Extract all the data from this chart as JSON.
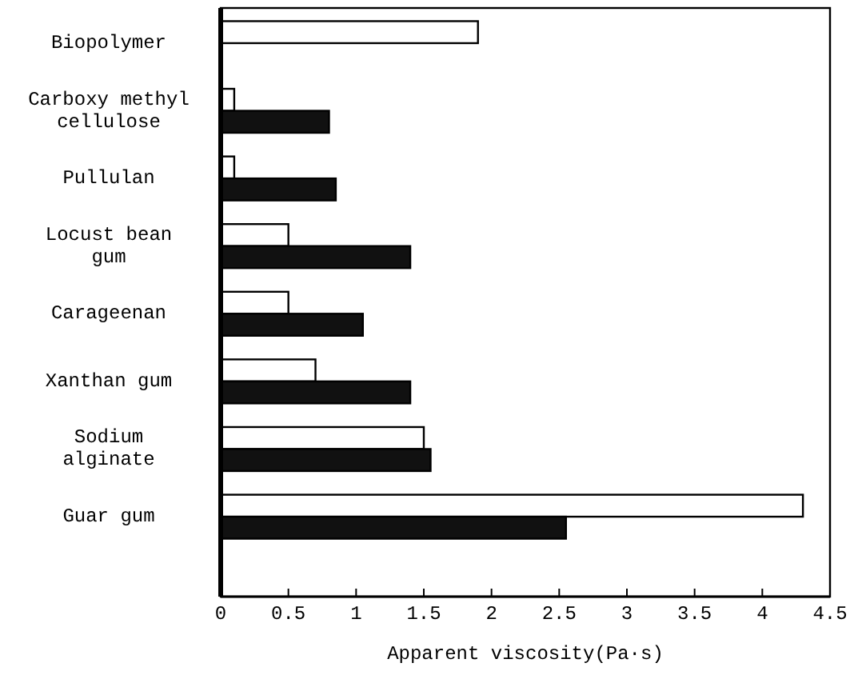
{
  "chart_data": {
    "type": "bar",
    "orientation": "horizontal",
    "xlabel": "Apparent viscosity(Pa·s)",
    "categories": [
      "Biopolymer",
      "Carboxy methyl cellulose",
      "Pullulan",
      "Locust bean gum",
      "Carageenan",
      "Xanthan gum",
      "Sodium alginate",
      "Guar gum"
    ],
    "series": [
      {
        "color": "#ffffff",
        "values": [
          1.9,
          0.1,
          0.1,
          0.5,
          0.5,
          0.7,
          1.5,
          4.3
        ]
      },
      {
        "color": "#111111",
        "values": [
          null,
          0.8,
          0.85,
          1.4,
          1.05,
          1.4,
          1.55,
          2.55
        ]
      }
    ],
    "xlim": [
      0,
      4.5
    ],
    "xticks": [
      0,
      0.5,
      1,
      1.5,
      2,
      2.5,
      3,
      3.5,
      4,
      4.5
    ],
    "grid": false
  }
}
